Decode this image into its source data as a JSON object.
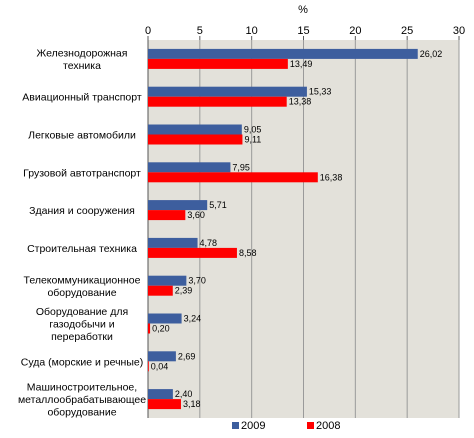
{
  "chart_data": {
    "type": "bar",
    "orientation": "horizontal",
    "unit_label": "%",
    "categories": [
      [
        "Железнодорожная",
        "техника"
      ],
      [
        "Авиационный транспорт"
      ],
      [
        "Легковые автомобили"
      ],
      [
        "Грузовой автотранспорт"
      ],
      [
        "Здания и сооружения"
      ],
      [
        "Строительная техника"
      ],
      [
        "Телекоммуникационное",
        "оборудование"
      ],
      [
        "Оборудование для",
        "газодобычи и",
        "переработки"
      ],
      [
        "Суда (морские и речные)"
      ],
      [
        "Машиностроительное,",
        "металлообрабатывающее",
        "оборудование"
      ]
    ],
    "series": [
      {
        "name": "2009",
        "color": "#3d5e9e",
        "values": [
          26.02,
          15.33,
          9.05,
          7.95,
          5.71,
          4.78,
          3.7,
          3.24,
          2.69,
          2.4
        ],
        "labels": [
          "26,02",
          "15,33",
          "9,05",
          "7,95",
          "5,71",
          "4,78",
          "3,70",
          "3,24",
          "2,69",
          "2,40"
        ]
      },
      {
        "name": "2008",
        "color": "#ff0000",
        "values": [
          13.49,
          13.38,
          9.11,
          16.38,
          3.6,
          8.58,
          2.39,
          0.2,
          0.04,
          3.18
        ],
        "labels": [
          "13,49",
          "13,38",
          "9,11",
          "16,38",
          "3,60",
          "8,58",
          "2,39",
          "0,20",
          "0,04",
          "3,18"
        ]
      }
    ],
    "xlim": [
      0,
      30
    ],
    "xticks": [
      0,
      5,
      10,
      15,
      20,
      25,
      30
    ],
    "xtick_labels": [
      "0",
      "5",
      "10",
      "15",
      "20",
      "25",
      "30"
    ],
    "grid": "vertical",
    "legend_position": "bottom"
  }
}
